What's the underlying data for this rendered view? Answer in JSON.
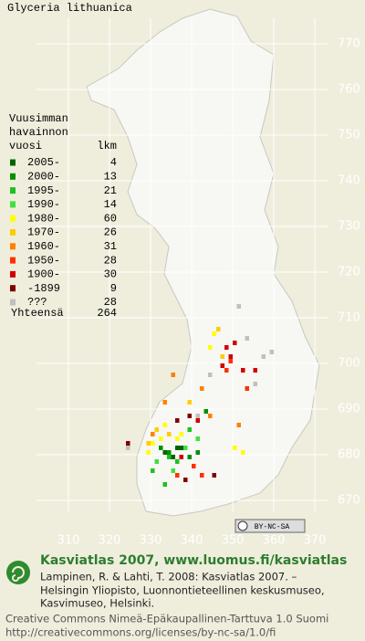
{
  "title": "Glyceria lithuanica",
  "legend": {
    "header": [
      "Vuusimman",
      "havainnon",
      "vuosi"
    ],
    "count_header": "lkm",
    "rows": [
      {
        "label": "2005-",
        "count": 4,
        "color": "#006400",
        "squares": [
          [
            333,
            680
          ],
          [
            335,
            679
          ],
          [
            337,
            681
          ],
          [
            336,
            681
          ]
        ]
      },
      {
        "label": "2000-",
        "count": 13,
        "color": "#009000",
        "squares": [
          [
            332,
            681
          ],
          [
            334,
            680
          ],
          [
            343,
            689
          ],
          [
            339,
            679
          ],
          [
            341,
            680
          ]
        ]
      },
      {
        "label": "1995-",
        "count": 21,
        "color": "#20c020",
        "squares": [
          [
            334,
            679
          ],
          [
            330,
            676
          ],
          [
            339,
            685
          ],
          [
            336,
            678
          ],
          [
            333,
            673
          ]
        ]
      },
      {
        "label": "1990-",
        "count": 14,
        "color": "#40e040",
        "squares": [
          [
            338,
            681
          ],
          [
            341,
            683
          ],
          [
            335,
            676
          ],
          [
            331,
            678
          ]
        ]
      },
      {
        "label": "1980-",
        "count": 60,
        "color": "#ffff00",
        "squares": [
          [
            330,
            682
          ],
          [
            332,
            683
          ],
          [
            337,
            684
          ],
          [
            345,
            706
          ],
          [
            344,
            703
          ],
          [
            350,
            681
          ],
          [
            352,
            680
          ],
          [
            333,
            686
          ],
          [
            336,
            683
          ],
          [
            329,
            680
          ]
        ]
      },
      {
        "label": "1970-",
        "count": 26,
        "color": "#ffcc00",
        "squares": [
          [
            331,
            685
          ],
          [
            339,
            691
          ],
          [
            347,
            701
          ],
          [
            346,
            707
          ],
          [
            334,
            684
          ],
          [
            329,
            682
          ]
        ]
      },
      {
        "label": "1960-",
        "count": 31,
        "color": "#ff8000",
        "squares": [
          [
            333,
            691
          ],
          [
            342,
            694
          ],
          [
            335,
            697
          ],
          [
            351,
            686
          ],
          [
            344,
            688
          ],
          [
            330,
            684
          ]
        ]
      },
      {
        "label": "1950-",
        "count": 28,
        "color": "#ff3000",
        "squares": [
          [
            348,
            698
          ],
          [
            349,
            700
          ],
          [
            340,
            677
          ],
          [
            336,
            675
          ],
          [
            342,
            675
          ],
          [
            353,
            694
          ]
        ]
      },
      {
        "label": "1900-",
        "count": 30,
        "color": "#d00000",
        "squares": [
          [
            348,
            703
          ],
          [
            349,
            701
          ],
          [
            352,
            698
          ],
          [
            347,
            699
          ],
          [
            337,
            679
          ],
          [
            341,
            687
          ],
          [
            355,
            698
          ],
          [
            350,
            704
          ]
        ]
      },
      {
        "label": "-1899",
        "count": 9,
        "color": "#800000",
        "squares": [
          [
            324,
            682
          ],
          [
            336,
            687
          ],
          [
            339,
            688
          ],
          [
            345,
            675
          ],
          [
            338,
            674
          ]
        ]
      },
      {
        "label": "???",
        "count": 28,
        "color": "#c0c0c0",
        "squares": [
          [
            351,
            712
          ],
          [
            353,
            705
          ],
          [
            357,
            701
          ],
          [
            355,
            695
          ],
          [
            359,
            702
          ],
          [
            341,
            688
          ],
          [
            324,
            681
          ],
          [
            344,
            697
          ]
        ]
      }
    ],
    "total_label": "Yhteensä",
    "total": 264
  },
  "map": {
    "xticks": [
      310,
      320,
      330,
      340,
      350,
      360,
      370
    ],
    "yticks": [
      670,
      680,
      690,
      700,
      710,
      720,
      730,
      740,
      750,
      760,
      770
    ],
    "xlim": [
      310,
      370
    ],
    "ylim": [
      670,
      770
    ],
    "license_badge": "BY-NC-SA"
  },
  "footer": {
    "heading": "Kasviatlas 2007, www.luomus.fi/kasviatlas",
    "citation": [
      "Lampinen, R. & Lahti, T. 2008: Kasviatlas 2007. –",
      "Helsingin Yliopisto, Luonnontieteellinen keskusmuseo,",
      "Kasvimuseo, Helsinki."
    ],
    "license": [
      "Creative Commons Nimeä-Epäkaupallinen-Tarttuva 1.0 Suomi",
      "http://creativecommons.org/licenses/by-nc-sa/1.0/fi"
    ]
  }
}
